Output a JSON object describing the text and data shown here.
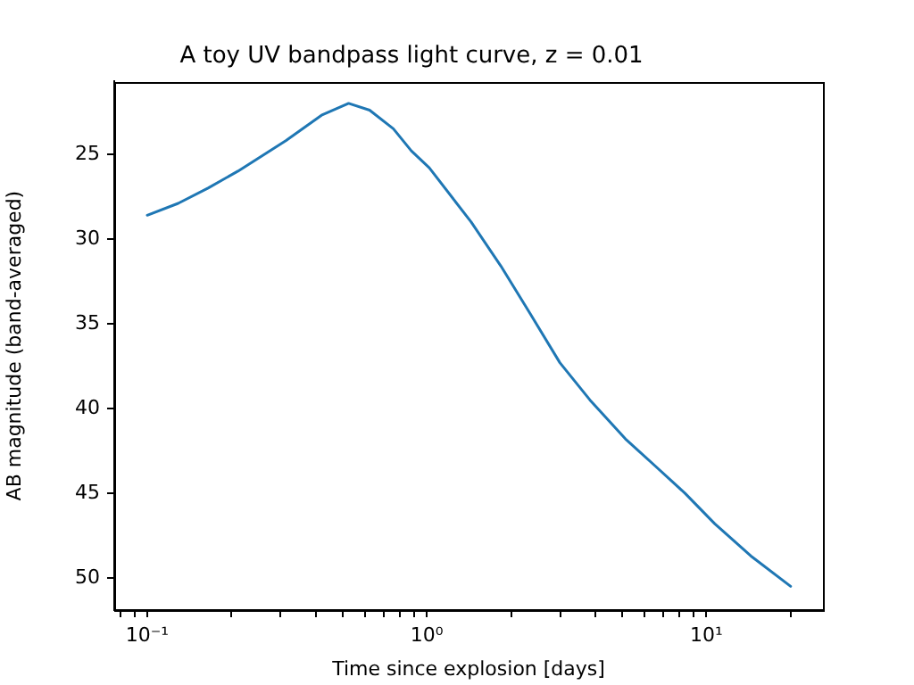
{
  "chart_data": {
    "type": "line",
    "title": "A toy UV bandpass light curve, z = 0.01",
    "xlabel": "Time since explosion [days]",
    "ylabel": "AB magnitude (band-averaged)",
    "log": "x",
    "grid": false,
    "legend": false,
    "marker": "none",
    "line_style": "solid",
    "xlim": [
      0.0762,
      26.1
    ],
    "ylim": [
      51.9,
      20.7
    ],
    "xticks": [
      {
        "value": 0.08,
        "label": null
      },
      {
        "value": 0.09,
        "label": null
      },
      {
        "value": 0.1,
        "label": "10⁻¹"
      },
      {
        "value": 0.2,
        "label": null
      },
      {
        "value": 0.3,
        "label": null
      },
      {
        "value": 0.4,
        "label": null
      },
      {
        "value": 0.5,
        "label": null
      },
      {
        "value": 0.6,
        "label": null
      },
      {
        "value": 0.7,
        "label": null
      },
      {
        "value": 0.8,
        "label": null
      },
      {
        "value": 0.9,
        "label": null
      },
      {
        "value": 1,
        "label": "10⁰"
      },
      {
        "value": 2,
        "label": null
      },
      {
        "value": 3,
        "label": null
      },
      {
        "value": 4,
        "label": null
      },
      {
        "value": 5,
        "label": null
      },
      {
        "value": 6,
        "label": null
      },
      {
        "value": 7,
        "label": null
      },
      {
        "value": 8,
        "label": null
      },
      {
        "value": 9,
        "label": null
      },
      {
        "value": 10,
        "label": "10¹"
      },
      {
        "value": 20,
        "label": null
      }
    ],
    "yticks": [
      25,
      30,
      35,
      40,
      45,
      50
    ],
    "x": [
      0.1,
      0.129,
      0.165,
      0.211,
      0.313,
      0.42,
      0.525,
      0.624,
      0.759,
      0.88,
      1.02,
      1.44,
      1.84,
      2.34,
      2.99,
      3.83,
      5.13,
      6.56,
      8.37,
      10.7,
      14.4,
      20
    ],
    "series": [
      {
        "color": "#1f77b4",
        "values": [
          28.6,
          27.9,
          27.0,
          26.0,
          24.2,
          22.7,
          22.0,
          22.4,
          23.5,
          24.8,
          25.8,
          29.0,
          31.6,
          34.4,
          37.3,
          39.5,
          41.8,
          43.4,
          45.0,
          46.8,
          48.7,
          50.5
        ]
      }
    ]
  }
}
